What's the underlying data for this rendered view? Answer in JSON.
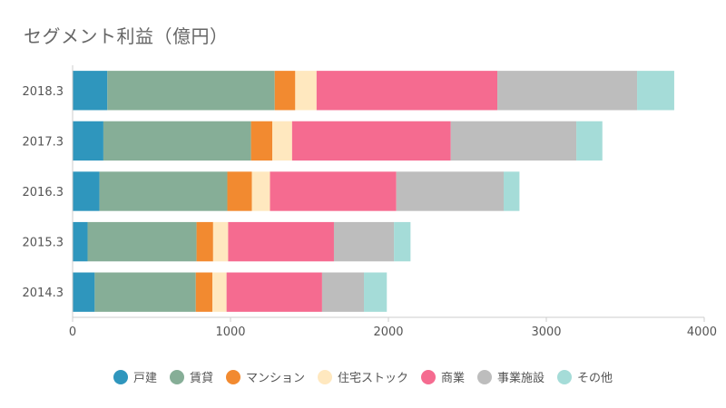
{
  "chart_data": {
    "type": "bar",
    "orientation": "horizontal",
    "stacked": true,
    "title": "セグメント利益（億円）",
    "categories": [
      "2018.3",
      "2017.3",
      "2016.3",
      "2015.3",
      "2014.3"
    ],
    "series": [
      {
        "name": "戸建",
        "color": "#2f96bd",
        "values": [
          220,
          195,
          170,
          95,
          140
        ]
      },
      {
        "name": "賃貸",
        "color": "#86ae97",
        "values": [
          1060,
          935,
          810,
          690,
          640
        ]
      },
      {
        "name": "マンション",
        "color": "#f28a30",
        "values": [
          130,
          135,
          155,
          105,
          105
        ]
      },
      {
        "name": "住宅ストック",
        "color": "#ffe8bf",
        "values": [
          135,
          125,
          115,
          95,
          90
        ]
      },
      {
        "name": "商業",
        "color": "#f56b90",
        "values": [
          1145,
          1005,
          800,
          670,
          605
        ]
      },
      {
        "name": "事業施設",
        "color": "#bdbdbd",
        "values": [
          885,
          795,
          680,
          380,
          265
        ]
      },
      {
        "name": "その他",
        "color": "#a5dcd8",
        "values": [
          235,
          165,
          100,
          105,
          145
        ]
      }
    ],
    "xlim": [
      0,
      4000
    ],
    "xticks": [
      0,
      1000,
      2000,
      3000,
      4000
    ],
    "grid": false,
    "legend_position": "bottom"
  }
}
